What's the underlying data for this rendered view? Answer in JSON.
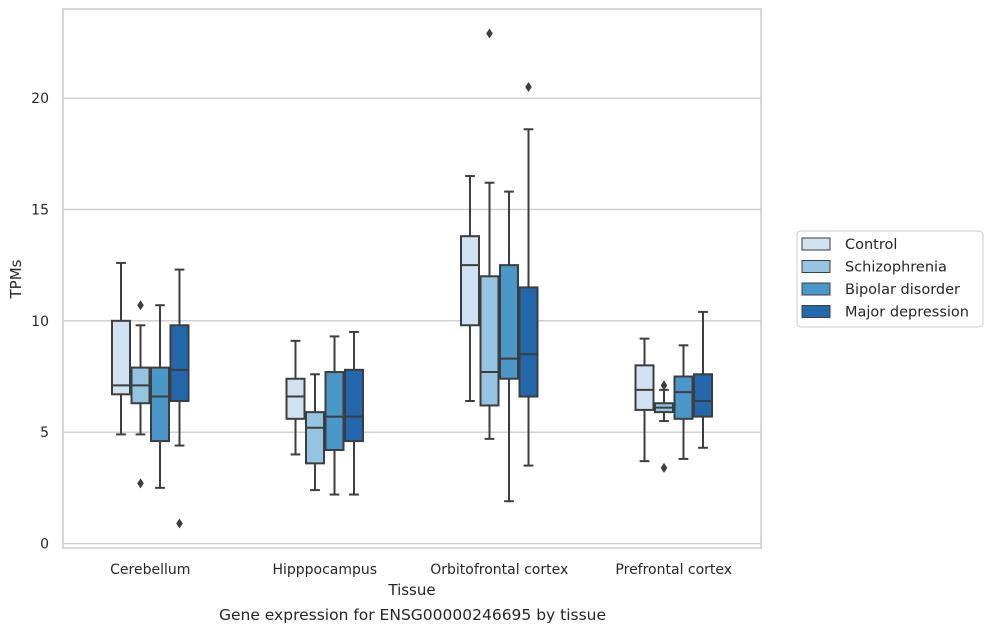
{
  "chart_data": {
    "type": "box",
    "xlabel": "Tissue",
    "ylabel": "TPMs",
    "caption": "Gene expression for ENSG00000246695 by tissue",
    "categories": [
      "Cerebellum",
      "Hipppocampus",
      "Orbitofrontal cortex",
      "Prefrontal cortex"
    ],
    "ylim": [
      -0.2,
      24.0
    ],
    "yticks": [
      0,
      5,
      10,
      15,
      20
    ],
    "grid": true,
    "legend_position": "outside-right",
    "series": [
      {
        "name": "Control",
        "color": "#d0e1f2",
        "boxes": [
          {
            "whisker_low": 4.9,
            "q1": 6.7,
            "median": 7.1,
            "q3": 10.0,
            "whisker_high": 12.6,
            "outliers": []
          },
          {
            "whisker_low": 4.0,
            "q1": 5.6,
            "median": 6.6,
            "q3": 7.4,
            "whisker_high": 9.1,
            "outliers": []
          },
          {
            "whisker_low": 6.4,
            "q1": 9.8,
            "median": 12.5,
            "q3": 13.8,
            "whisker_high": 16.5,
            "outliers": []
          },
          {
            "whisker_low": 3.7,
            "q1": 6.0,
            "median": 6.9,
            "q3": 8.0,
            "whisker_high": 9.2,
            "outliers": []
          }
        ]
      },
      {
        "name": "Schizophrenia",
        "color": "#94c4df",
        "boxes": [
          {
            "whisker_low": 4.9,
            "q1": 6.3,
            "median": 7.1,
            "q3": 7.9,
            "whisker_high": 9.8,
            "outliers": [
              10.7,
              2.7
            ]
          },
          {
            "whisker_low": 2.4,
            "q1": 3.6,
            "median": 5.2,
            "q3": 5.9,
            "whisker_high": 7.6,
            "outliers": []
          },
          {
            "whisker_low": 4.7,
            "q1": 6.2,
            "median": 7.7,
            "q3": 12.0,
            "whisker_high": 16.2,
            "outliers": [
              22.9
            ]
          },
          {
            "whisker_low": 5.5,
            "q1": 5.9,
            "median": 6.1,
            "q3": 6.3,
            "whisker_high": 6.9,
            "outliers": [
              7.1,
              3.4
            ]
          }
        ]
      },
      {
        "name": "Bipolar disorder",
        "color": "#4a98c9",
        "boxes": [
          {
            "whisker_low": 2.5,
            "q1": 4.6,
            "median": 6.6,
            "q3": 7.9,
            "whisker_high": 10.7,
            "outliers": []
          },
          {
            "whisker_low": 2.2,
            "q1": 4.2,
            "median": 5.7,
            "q3": 7.7,
            "whisker_high": 9.3,
            "outliers": []
          },
          {
            "whisker_low": 1.9,
            "q1": 7.4,
            "median": 8.3,
            "q3": 12.5,
            "whisker_high": 15.8,
            "outliers": []
          },
          {
            "whisker_low": 3.8,
            "q1": 5.6,
            "median": 6.8,
            "q3": 7.5,
            "whisker_high": 8.9,
            "outliers": []
          }
        ]
      },
      {
        "name": "Major depression",
        "color": "#2367ac",
        "boxes": [
          {
            "whisker_low": 4.4,
            "q1": 6.4,
            "median": 7.8,
            "q3": 9.8,
            "whisker_high": 12.3,
            "outliers": [
              0.9
            ]
          },
          {
            "whisker_low": 2.2,
            "q1": 4.6,
            "median": 5.7,
            "q3": 7.8,
            "whisker_high": 9.5,
            "outliers": []
          },
          {
            "whisker_low": 3.5,
            "q1": 6.6,
            "median": 8.5,
            "q3": 11.5,
            "whisker_high": 18.6,
            "outliers": [
              20.5
            ]
          },
          {
            "whisker_low": 4.3,
            "q1": 5.7,
            "median": 6.4,
            "q3": 7.6,
            "whisker_high": 10.4,
            "outliers": []
          }
        ]
      }
    ]
  }
}
